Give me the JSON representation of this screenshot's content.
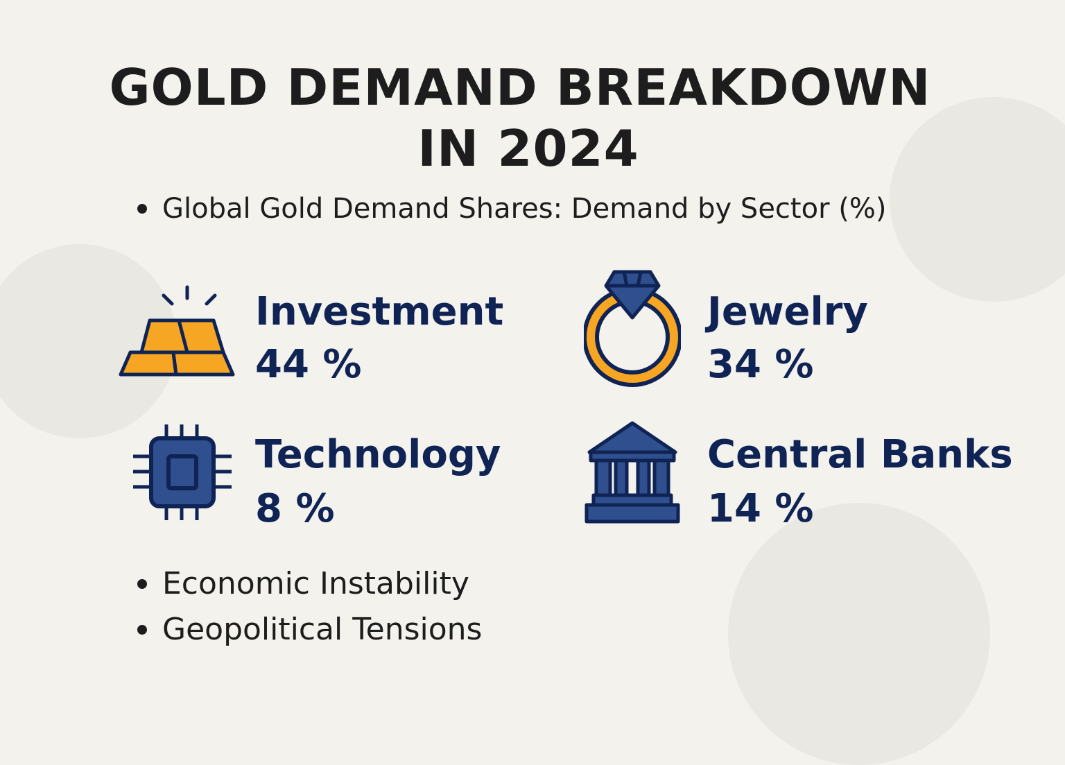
{
  "title_line1": "GOLD DEMAND BREAKDOWN",
  "title_line2": "IN 2024",
  "subtitle": "Global Gold Demand Shares: Demand by Sector (%)",
  "colors": {
    "navy": "#0f2354",
    "icon_blue": "#2f4f8e",
    "gold": "#f6a623",
    "background": "#f3f2ed"
  },
  "sectors": [
    {
      "label": "Investment",
      "value": "44 %",
      "share": 44,
      "icon": "gold-bars-icon"
    },
    {
      "label": "Jewelry",
      "value": "34 %",
      "share": 34,
      "icon": "diamond-ring-icon"
    },
    {
      "label": "Technology",
      "value": "8 %",
      "share": 8,
      "icon": "microchip-icon"
    },
    {
      "label": "Central Banks",
      "value": "14 %",
      "share": 14,
      "icon": "bank-building-icon"
    }
  ],
  "drivers": [
    "Economic Instability",
    "Geopolitical Tensions"
  ]
}
